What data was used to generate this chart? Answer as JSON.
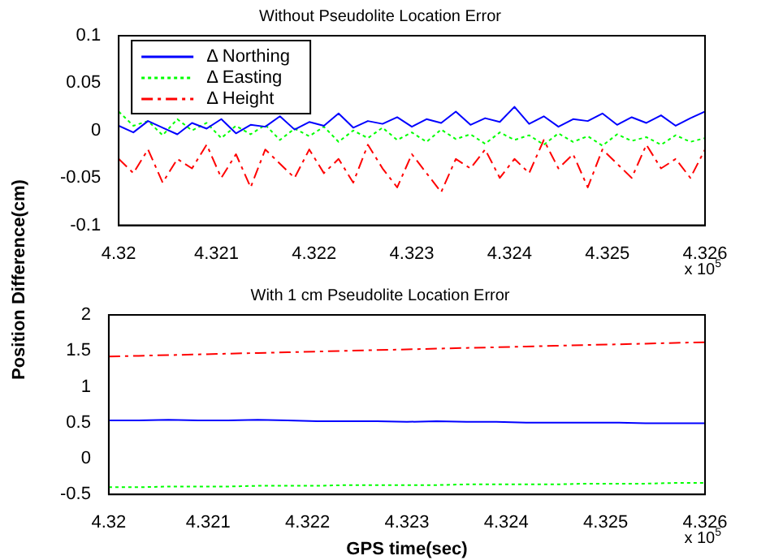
{
  "chart_data": [
    {
      "type": "line",
      "title": "Without Pseudolite Location Error",
      "ylabel": "Position Difference(cm)",
      "legend": "top left",
      "grid": false,
      "x": [
        4.32,
        4.32015,
        4.3203,
        4.32045,
        4.3206,
        4.32075,
        4.3209,
        4.32105,
        4.3212,
        4.32135,
        4.3215,
        4.32165,
        4.3218,
        4.32195,
        4.3221,
        4.32225,
        4.3224,
        4.32255,
        4.3227,
        4.32285,
        4.323,
        4.32315,
        4.3233,
        4.32345,
        4.3236,
        4.32375,
        4.3239,
        4.32405,
        4.3242,
        4.32435,
        4.3245,
        4.32465,
        4.3248,
        4.32495,
        4.3251,
        4.32525,
        4.3254,
        4.32555,
        4.3257,
        4.32585,
        4.326
      ],
      "xlim": [
        4.32,
        4.326
      ],
      "xticks": [
        4.32,
        4.321,
        4.322,
        4.323,
        4.324,
        4.325,
        4.326
      ],
      "ylim": [
        -0.1,
        0.1
      ],
      "yticks": [
        -0.1,
        -0.05,
        0,
        0.05,
        0.1
      ],
      "annotations": [
        "x 10$^{5}$"
      ],
      "series": [
        {
          "name": "Δ Northing",
          "color": "#0000ff",
          "line_style": "solid",
          "values": [
            0.005,
            -0.002,
            0.01,
            0.003,
            -0.004,
            0.008,
            0.002,
            0.012,
            -0.003,
            0.006,
            0.004,
            0.015,
            0.001,
            0.009,
            0.005,
            0.018,
            0.003,
            0.01,
            0.007,
            0.014,
            0.004,
            0.012,
            0.008,
            0.02,
            0.006,
            0.013,
            0.009,
            0.025,
            0.007,
            0.015,
            0.004,
            0.012,
            0.01,
            0.018,
            0.006,
            0.014,
            0.008,
            0.016,
            0.005,
            0.013,
            0.02
          ]
        },
        {
          "name": "Δ Easting",
          "color": "#00ff00",
          "line_style": "dotted",
          "values": [
            0.02,
            0.005,
            0.01,
            -0.005,
            0.012,
            0.0,
            0.008,
            -0.008,
            0.005,
            -0.004,
            0.006,
            -0.01,
            0.002,
            -0.006,
            0.004,
            -0.012,
            0.0,
            -0.008,
            0.003,
            -0.01,
            -0.002,
            -0.012,
            0.001,
            -0.009,
            -0.004,
            -0.014,
            -0.002,
            -0.01,
            -0.005,
            -0.015,
            -0.003,
            -0.012,
            -0.006,
            -0.016,
            -0.004,
            -0.011,
            -0.007,
            -0.015,
            -0.005,
            -0.012,
            -0.008
          ]
        },
        {
          "name": "Δ Height",
          "color": "#ff0000",
          "line_style": "dashed",
          "values": [
            -0.03,
            -0.045,
            -0.02,
            -0.055,
            -0.03,
            -0.04,
            -0.015,
            -0.05,
            -0.025,
            -0.06,
            -0.02,
            -0.035,
            -0.05,
            -0.02,
            -0.045,
            -0.03,
            -0.055,
            -0.015,
            -0.04,
            -0.06,
            -0.025,
            -0.045,
            -0.065,
            -0.03,
            -0.04,
            -0.02,
            -0.05,
            -0.03,
            -0.045,
            -0.01,
            -0.04,
            -0.025,
            -0.06,
            -0.02,
            -0.035,
            -0.05,
            -0.015,
            -0.04,
            -0.03,
            -0.05,
            -0.02
          ]
        }
      ]
    },
    {
      "type": "line",
      "title": "With 1 cm Pseudolite Location Error",
      "xlabel": "GPS time(sec)",
      "grid": false,
      "x": [
        4.32,
        4.3203,
        4.3206,
        4.3209,
        4.3212,
        4.3215,
        4.3218,
        4.3221,
        4.3224,
        4.3227,
        4.323,
        4.3233,
        4.3236,
        4.3239,
        4.3242,
        4.3245,
        4.3248,
        4.3251,
        4.3254,
        4.3257,
        4.326
      ],
      "xlim": [
        4.32,
        4.326
      ],
      "xticks": [
        4.32,
        4.321,
        4.322,
        4.323,
        4.324,
        4.325,
        4.326
      ],
      "ylim": [
        -0.5,
        2
      ],
      "yticks": [
        -0.5,
        0,
        0.5,
        1,
        1.5,
        2
      ],
      "annotations": [
        "x 10$^{5}$"
      ],
      "series": [
        {
          "color": "#0000ff",
          "line_style": "solid",
          "values": [
            0.53,
            0.53,
            0.54,
            0.53,
            0.53,
            0.54,
            0.53,
            0.52,
            0.52,
            0.52,
            0.51,
            0.52,
            0.51,
            0.51,
            0.5,
            0.5,
            0.5,
            0.5,
            0.49,
            0.49,
            0.49
          ]
        },
        {
          "color": "#00ff00",
          "line_style": "dotted",
          "values": [
            -0.4,
            -0.4,
            -0.39,
            -0.39,
            -0.39,
            -0.38,
            -0.38,
            -0.38,
            -0.37,
            -0.37,
            -0.37,
            -0.37,
            -0.36,
            -0.36,
            -0.36,
            -0.36,
            -0.35,
            -0.35,
            -0.35,
            -0.34,
            -0.34
          ]
        },
        {
          "color": "#ff0000",
          "line_style": "dashed",
          "values": [
            1.42,
            1.43,
            1.44,
            1.45,
            1.46,
            1.47,
            1.48,
            1.49,
            1.5,
            1.51,
            1.52,
            1.53,
            1.54,
            1.55,
            1.56,
            1.57,
            1.58,
            1.59,
            1.6,
            1.61,
            1.62
          ]
        }
      ]
    }
  ]
}
